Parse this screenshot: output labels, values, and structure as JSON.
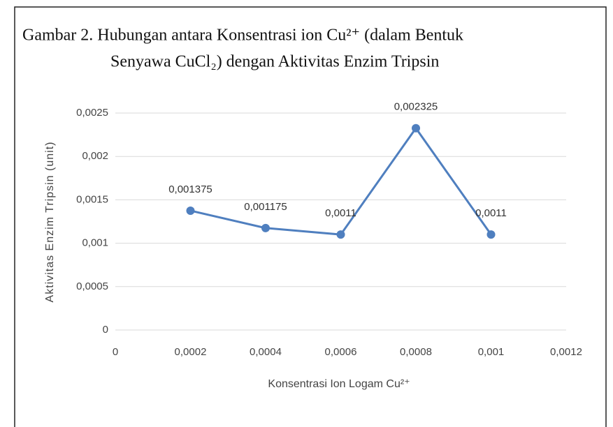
{
  "chart_data": {
    "type": "line",
    "title": [
      "Gambar 2. Hubungan antara Konsentrasi ion Cu²⁺ (dalam Bentuk",
      "Senyawa CuCl₂) dengan Aktivitas Enzim Tripsin"
    ],
    "x_label": "Konsentrasi Ion Logam Cu²⁺",
    "y_label": "Aktivitas Enzim Tripsin (unit)",
    "x": [
      0.0002,
      0.0004,
      0.0006,
      0.0008,
      0.001
    ],
    "series": [
      {
        "name": "Aktivitas Enzim Tripsin",
        "color": "#4f7fbf",
        "values": [
          0.001375,
          0.001175,
          0.0011,
          0.002325,
          0.0011
        ],
        "value_labels": [
          "0,001375",
          "0,001175",
          "0,0011",
          "0,002325",
          "0,0011"
        ]
      }
    ],
    "xlim": [
      0,
      0.0012
    ],
    "xticks": [
      0,
      {
        "value": 0.0002,
        "label": "0,0002"
      },
      {
        "value": 0.0004,
        "label": "0,0004"
      },
      {
        "value": 0.0006,
        "label": "0,0006"
      },
      {
        "value": 0.0008,
        "label": "0,0008"
      },
      {
        "value": 0.001,
        "label": "0,001"
      },
      {
        "value": 0.0012,
        "label": "0,0012"
      }
    ],
    "ylim": [
      0,
      0.0025
    ],
    "yticks": [
      0,
      {
        "value": 0.0005,
        "label": "0,0005"
      },
      {
        "value": 0.001,
        "label": "0,001"
      },
      {
        "value": 0.0015,
        "label": "0,0015"
      },
      {
        "value": 0.002,
        "label": "0,002"
      },
      {
        "value": 0.0025,
        "label": "0,0025"
      }
    ],
    "grid": true
  }
}
